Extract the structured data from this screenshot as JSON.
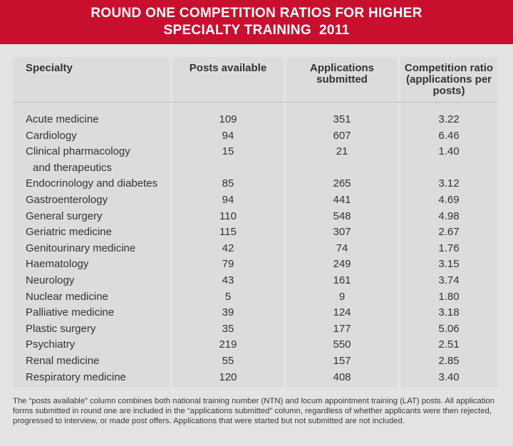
{
  "title": {
    "line1": "ROUND ONE COMPETITION RATIOS FOR HIGHER",
    "line2": "SPECIALTY TRAINING  2011"
  },
  "colors": {
    "title_bar": "#c8102e",
    "title_text": "#ffffff",
    "column_bg": "#dcdcdc",
    "page_bg": "#e3e3e3"
  },
  "table": {
    "headers": {
      "specialty": "Specialty",
      "posts": "Posts available",
      "applications": "Applications submitted",
      "ratio": "Competition ratio (applications per posts)"
    },
    "rows": [
      {
        "name": "Acute medicine",
        "name2": "",
        "posts": "109",
        "apps": "351",
        "ratio": "3.22"
      },
      {
        "name": "Cardiology",
        "name2": "",
        "posts": "94",
        "apps": "607",
        "ratio": "6.46"
      },
      {
        "name": "Clinical pharmacology",
        "name2": "and therapeutics",
        "posts": "15",
        "apps": "21",
        "ratio": "1.40"
      },
      {
        "name": "Endocrinology and diabetes",
        "name2": "",
        "posts": "85",
        "apps": "265",
        "ratio": "3.12"
      },
      {
        "name": "Gastroenterology",
        "name2": "",
        "posts": "94",
        "apps": "441",
        "ratio": "4.69"
      },
      {
        "name": "General surgery",
        "name2": "",
        "posts": "110",
        "apps": "548",
        "ratio": "4.98"
      },
      {
        "name": "Geriatric medicine",
        "name2": "",
        "posts": "115",
        "apps": "307",
        "ratio": "2.67"
      },
      {
        "name": "Genitourinary medicine",
        "name2": "",
        "posts": "42",
        "apps": "74",
        "ratio": "1.76"
      },
      {
        "name": "Haematology",
        "name2": "",
        "posts": "79",
        "apps": "249",
        "ratio": "3.15"
      },
      {
        "name": "Neurology",
        "name2": "",
        "posts": "43",
        "apps": "161",
        "ratio": "3.74"
      },
      {
        "name": "Nuclear medicine",
        "name2": "",
        "posts": "5",
        "apps": "9",
        "ratio": "1.80"
      },
      {
        "name": "Palliative medicine",
        "name2": "",
        "posts": "39",
        "apps": "124",
        "ratio": "3.18"
      },
      {
        "name": "Plastic surgery",
        "name2": "",
        "posts": "35",
        "apps": "177",
        "ratio": "5.06"
      },
      {
        "name": "Psychiatry",
        "name2": "",
        "posts": "219",
        "apps": "550",
        "ratio": "2.51"
      },
      {
        "name": "Renal medicine",
        "name2": "",
        "posts": "55",
        "apps": "157",
        "ratio": "2.85"
      },
      {
        "name": "Respiratory medicine",
        "name2": "",
        "posts": "120",
        "apps": "408",
        "ratio": "3.40"
      }
    ]
  },
  "footnote": "The “posts available” column combines both national training number (NTN) and locum appointment training (LAT) posts. All application forms submitted in round one are included in the “applications submitted” column, regardless of whether applicants were then rejected, progressed to interview, or made post offers. Applications that were started but not submitted are not included."
}
